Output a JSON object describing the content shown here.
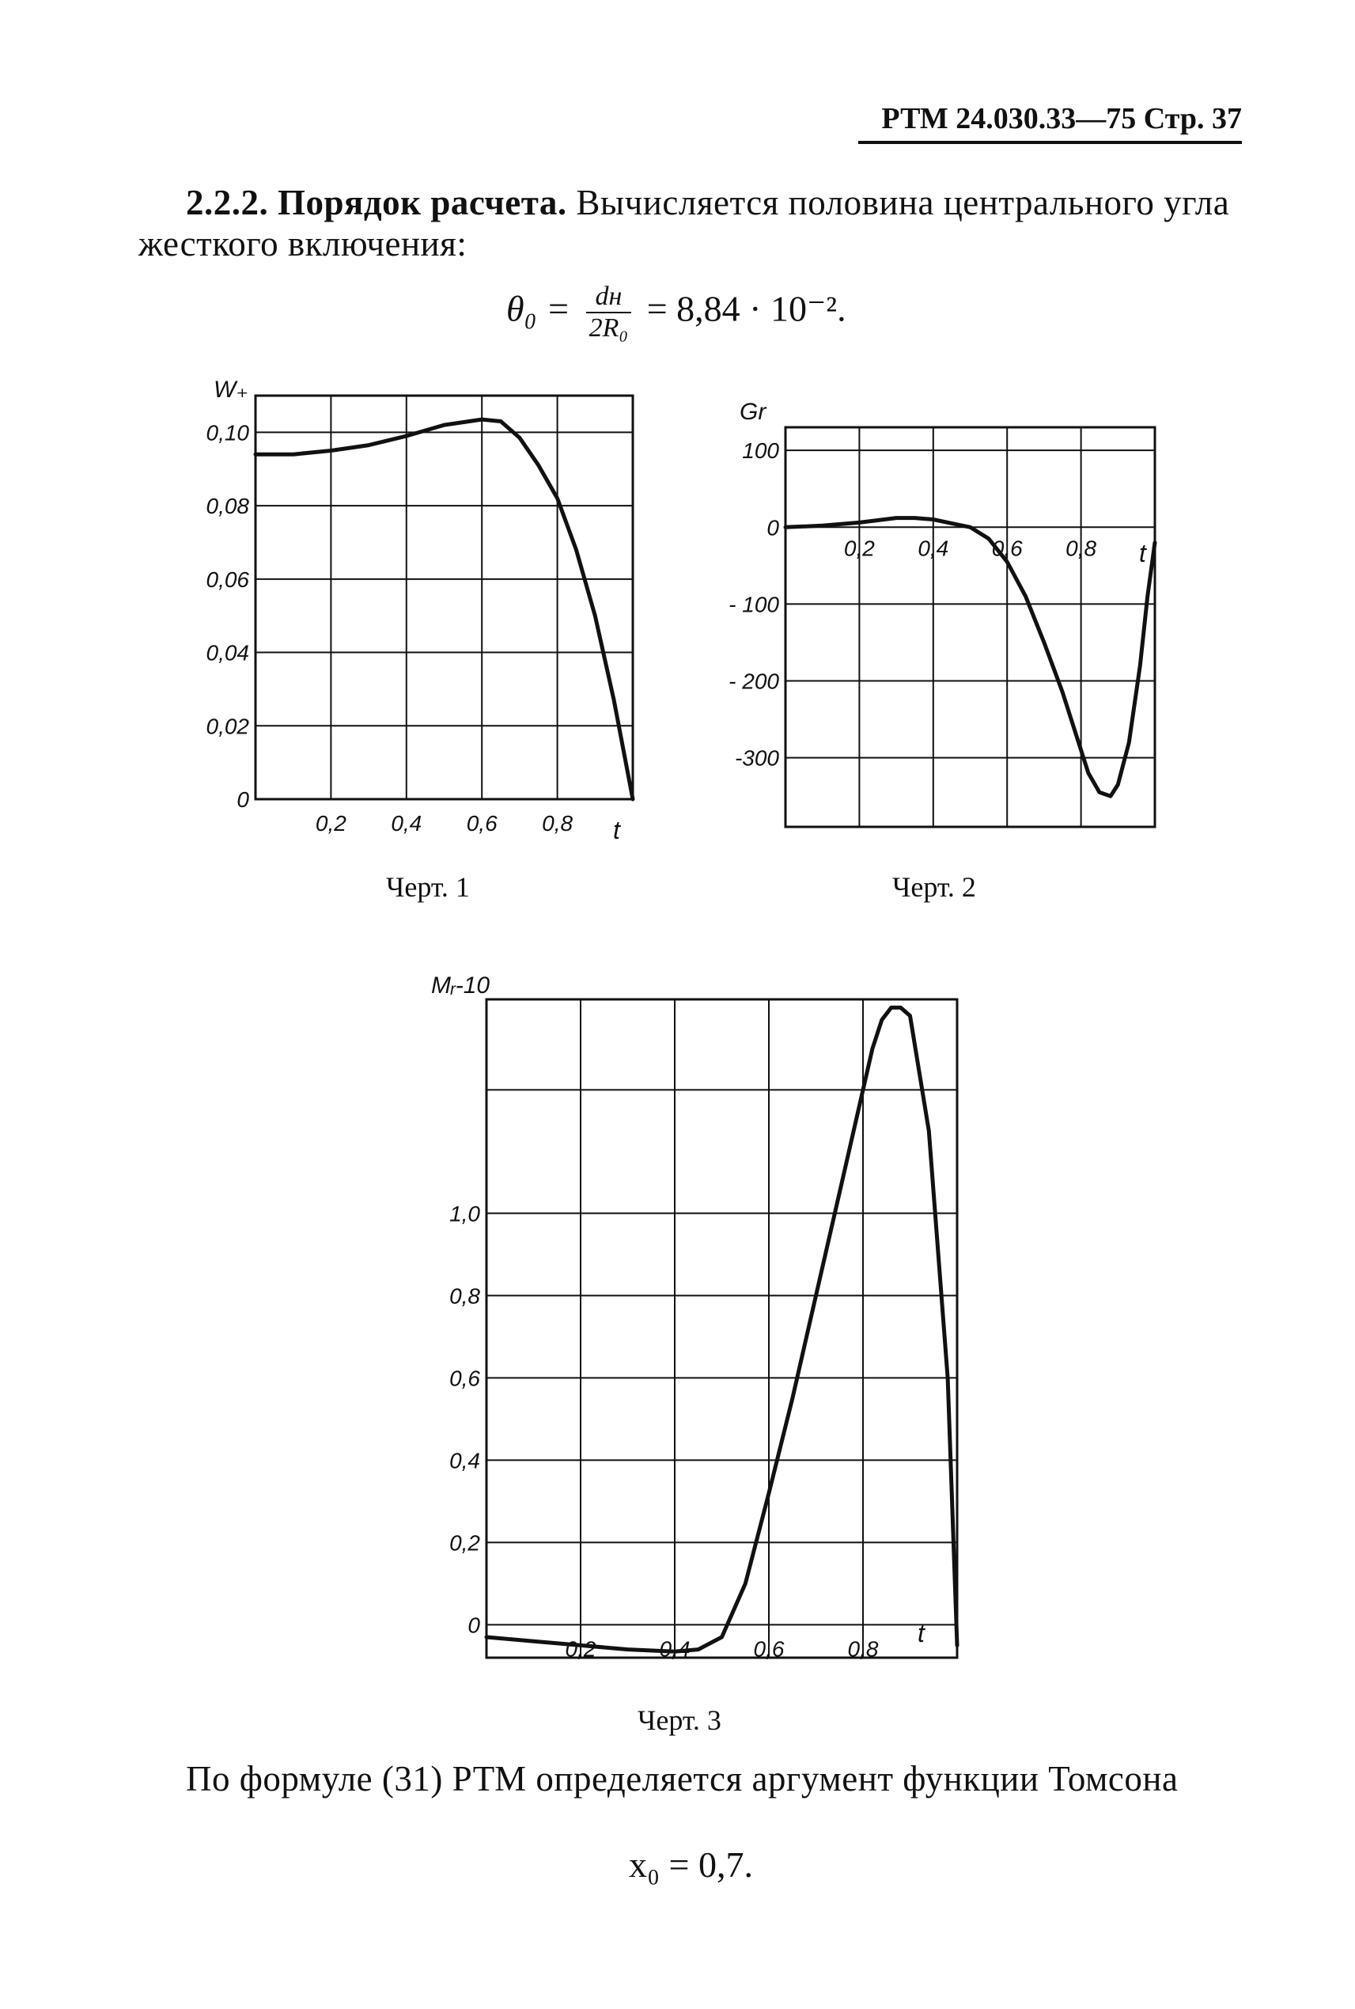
{
  "header": {
    "text": "РТМ 24.030.33—75   Стр. 37"
  },
  "intro": {
    "section_number": "2.2.2.",
    "heading": "Порядок расчета.",
    "text": "Вычисляется половина центрального угла жесткого включения:"
  },
  "formula_theta": {
    "lhs": "θ₀ =",
    "numerator": "dн",
    "denominator": "2R₀",
    "rhs": "= 8,84 · 10⁻²."
  },
  "captions": {
    "fig1": "Черт. 1",
    "fig2": "Черт. 2",
    "fig3": "Черт. 3"
  },
  "conclusion": {
    "text": "По формуле (31) РТМ определяется аргумент функции Томсона"
  },
  "formula_x0": {
    "text": "x₀ = 0,7."
  },
  "chart_data": [
    {
      "type": "line",
      "ylabel": "W₊",
      "xlabel": "t",
      "xlim": [
        0,
        1
      ],
      "ylim": [
        0,
        0.11
      ],
      "x_ticks": [
        "0,2",
        "0,4",
        "0,6",
        "0,8"
      ],
      "y_ticks": [
        "0",
        "0,02",
        "0,04",
        "0,06",
        "0,08",
        "0,10"
      ],
      "grid": true,
      "x": [
        0,
        0.1,
        0.2,
        0.3,
        0.4,
        0.5,
        0.6,
        0.65,
        0.7,
        0.75,
        0.8,
        0.85,
        0.9,
        0.95,
        1.0
      ],
      "values": [
        0.094,
        0.094,
        0.095,
        0.0965,
        0.099,
        0.102,
        0.1035,
        0.103,
        0.0985,
        0.091,
        0.082,
        0.068,
        0.05,
        0.027,
        0.0
      ]
    },
    {
      "type": "line",
      "ylabel": "Gr",
      "xlabel": "t",
      "xlim": [
        0,
        1
      ],
      "ylim": [
        -390,
        130
      ],
      "x_ticks": [
        "0,2",
        "0,4",
        "0,6",
        "0,8"
      ],
      "y_ticks": [
        "100",
        "0",
        "- 100",
        "- 200",
        "-300"
      ],
      "grid": true,
      "x": [
        0,
        0.1,
        0.2,
        0.3,
        0.35,
        0.4,
        0.45,
        0.5,
        0.55,
        0.6,
        0.65,
        0.7,
        0.75,
        0.8,
        0.82,
        0.85,
        0.88,
        0.9,
        0.93,
        0.96,
        0.98,
        1.0
      ],
      "values": [
        0,
        2,
        6,
        12,
        12,
        10,
        5,
        0,
        -15,
        -45,
        -90,
        -150,
        -215,
        -290,
        -320,
        -345,
        -350,
        -335,
        -280,
        -180,
        -90,
        -20
      ]
    },
    {
      "type": "line",
      "ylabel": "Mᵣ-10",
      "xlabel": "t",
      "xlim": [
        0,
        1
      ],
      "ylim": [
        -0.08,
        1.52
      ],
      "x_ticks": [
        "0,2",
        "0,4",
        "0,6",
        "0,8"
      ],
      "y_ticks": [
        "0",
        "0,2",
        "0,4",
        "0,6",
        "0,8",
        "1,0"
      ],
      "grid": true,
      "x": [
        0,
        0.1,
        0.2,
        0.3,
        0.4,
        0.45,
        0.5,
        0.55,
        0.6,
        0.65,
        0.7,
        0.75,
        0.8,
        0.82,
        0.84,
        0.86,
        0.88,
        0.9,
        0.94,
        0.98,
        1.0
      ],
      "values": [
        -0.03,
        -0.04,
        -0.05,
        -0.06,
        -0.065,
        -0.06,
        -0.03,
        0.1,
        0.32,
        0.55,
        0.8,
        1.05,
        1.3,
        1.4,
        1.47,
        1.5,
        1.5,
        1.48,
        1.2,
        0.6,
        -0.05
      ]
    }
  ]
}
